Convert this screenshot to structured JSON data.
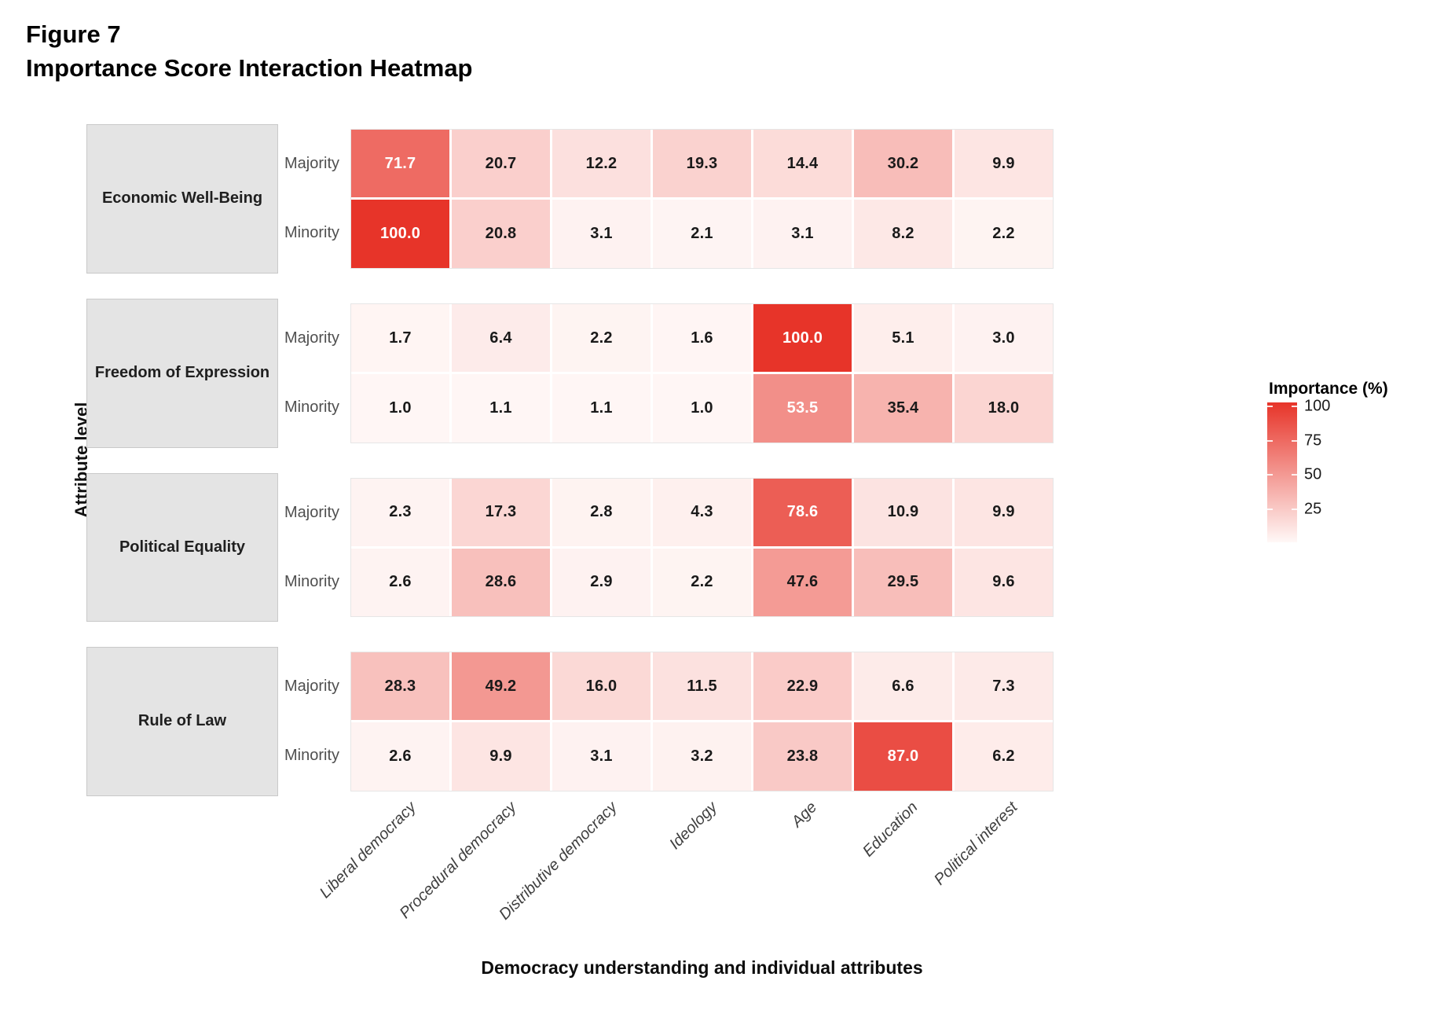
{
  "figure": {
    "title_line1": "Figure 7",
    "title_line2": "Importance Score Interaction Heatmap"
  },
  "axes": {
    "y_label": "Attribute level",
    "x_label": "Democracy understanding and individual attributes"
  },
  "legend": {
    "title": "Importance (%)",
    "ticks": [
      100,
      75,
      50,
      25
    ]
  },
  "chart_data": {
    "type": "heatmap",
    "x_categories": [
      "Liberal democracy",
      "Procedural democracy",
      "Distributive democracy",
      "Ideology",
      "Age",
      "Education",
      "Political interest"
    ],
    "row_levels": [
      "Majority",
      "Minority"
    ],
    "facets": [
      {
        "label": "Economic Well-Being",
        "rows": [
          {
            "label": "Majority",
            "values": [
              71.7,
              20.7,
              12.2,
              19.3,
              14.4,
              30.2,
              9.9
            ]
          },
          {
            "label": "Minority",
            "values": [
              100.0,
              20.8,
              3.1,
              2.1,
              3.1,
              8.2,
              2.2
            ]
          }
        ]
      },
      {
        "label": "Freedom of Expression",
        "rows": [
          {
            "label": "Majority",
            "values": [
              1.7,
              6.4,
              2.2,
              1.6,
              100.0,
              5.1,
              3.0
            ]
          },
          {
            "label": "Minority",
            "values": [
              1.0,
              1.1,
              1.1,
              1.0,
              53.5,
              35.4,
              18.0
            ]
          }
        ]
      },
      {
        "label": "Political Equality",
        "rows": [
          {
            "label": "Majority",
            "values": [
              2.3,
              17.3,
              2.8,
              4.3,
              78.6,
              10.9,
              9.9
            ]
          },
          {
            "label": "Minority",
            "values": [
              2.6,
              28.6,
              2.9,
              2.2,
              47.6,
              29.5,
              9.6
            ]
          }
        ]
      },
      {
        "label": "Rule of Law",
        "rows": [
          {
            "label": "Majority",
            "values": [
              28.3,
              49.2,
              16.0,
              11.5,
              22.9,
              6.6,
              7.3
            ]
          },
          {
            "label": "Minority",
            "values": [
              2.6,
              9.9,
              3.1,
              3.2,
              23.8,
              87.0,
              6.2
            ]
          }
        ]
      }
    ],
    "colorscale": {
      "low": "#FFF8F7",
      "high": "#E73429",
      "domain": [
        0,
        100
      ]
    },
    "value_decimals": 1,
    "white_text_threshold": 50,
    "cell_text_dark": "#1a1a1a",
    "cell_text_light": "#ffffff"
  }
}
